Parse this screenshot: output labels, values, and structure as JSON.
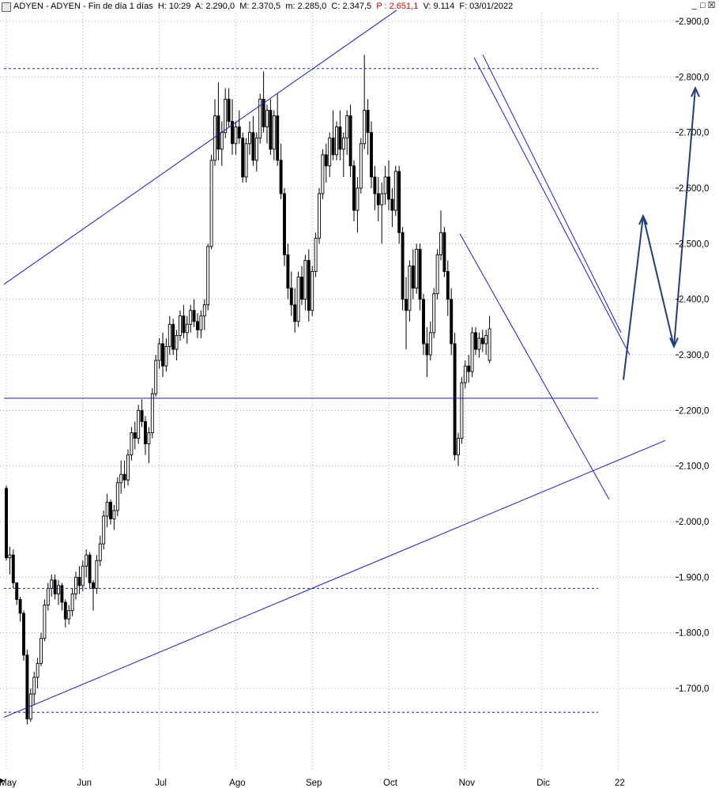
{
  "header": {
    "symbol": "ADYEN - ADYEN - Fin de día 1 días",
    "H": "H: 10:29",
    "A": "A: 2.290,0",
    "M": "M: 2.370,5",
    "m": "m: 2.285,0",
    "C": "C: 2.347,5",
    "P": "P : 2.651,1",
    "V": "V: 9.114",
    "F": "F: 03/01/2022"
  },
  "window_controls": {
    "minimize": "_",
    "maximize": "□",
    "close": "☒"
  },
  "colors": {
    "trendline": "#1a1acd",
    "arrow": "#1f3f7a",
    "candle": "#000000",
    "grid": "#9a9a9a"
  },
  "chart_data": {
    "type": "candlestick",
    "ylim": [
      1600,
      2930
    ],
    "yticks": [
      "2.900,0",
      "2.800,0",
      "2.700,0",
      "2.600,0",
      "2.500,0",
      "2.400,0",
      "2.300,0",
      "2.200,0",
      "2.100,0",
      "2.000,0",
      "1.900,0",
      "1.800,0",
      "1.700,0"
    ],
    "ytick_values": [
      2900,
      2800,
      2700,
      2600,
      2500,
      2400,
      2300,
      2200,
      2100,
      2000,
      1900,
      1800,
      1700
    ],
    "xticks": [
      "May",
      "Jun",
      "Jul",
      "Ago",
      "Sep",
      "Oct",
      "Nov",
      "Dic",
      "22"
    ],
    "xtick_index": [
      0,
      22,
      44,
      66,
      88,
      110,
      132,
      154,
      176
    ],
    "bars": [
      [
        2060,
        2065,
        1930,
        1935
      ],
      [
        1935,
        1955,
        1905,
        1940
      ],
      [
        1940,
        1950,
        1880,
        1890
      ],
      [
        1890,
        1890,
        1850,
        1860
      ],
      [
        1860,
        1865,
        1820,
        1835
      ],
      [
        1835,
        1840,
        1750,
        1760
      ],
      [
        1760,
        1770,
        1635,
        1645
      ],
      [
        1645,
        1700,
        1640,
        1690
      ],
      [
        1690,
        1730,
        1670,
        1720
      ],
      [
        1720,
        1755,
        1700,
        1745
      ],
      [
        1745,
        1800,
        1740,
        1790
      ],
      [
        1790,
        1860,
        1785,
        1850
      ],
      [
        1850,
        1890,
        1840,
        1880
      ],
      [
        1880,
        1905,
        1865,
        1895
      ],
      [
        1895,
        1905,
        1860,
        1870
      ],
      [
        1870,
        1895,
        1850,
        1885
      ],
      [
        1885,
        1890,
        1840,
        1855
      ],
      [
        1855,
        1860,
        1810,
        1825
      ],
      [
        1825,
        1850,
        1815,
        1840
      ],
      [
        1840,
        1880,
        1830,
        1870
      ],
      [
        1870,
        1910,
        1860,
        1900
      ],
      [
        1900,
        1920,
        1870,
        1885
      ],
      [
        1885,
        1930,
        1875,
        1920
      ],
      [
        1920,
        1950,
        1900,
        1940
      ],
      [
        1940,
        1945,
        1880,
        1890
      ],
      [
        1890,
        1895,
        1840,
        1880
      ],
      [
        1880,
        1940,
        1870,
        1930
      ],
      [
        1930,
        1975,
        1920,
        1960
      ],
      [
        1960,
        2020,
        1950,
        2010
      ],
      [
        2010,
        2050,
        1990,
        2035
      ],
      [
        2035,
        2040,
        1995,
        2005
      ],
      [
        2005,
        2030,
        1985,
        2020
      ],
      [
        2020,
        2080,
        2010,
        2070
      ],
      [
        2070,
        2110,
        2050,
        2085
      ],
      [
        2085,
        2110,
        2060,
        2075
      ],
      [
        2075,
        2130,
        2065,
        2120
      ],
      [
        2120,
        2170,
        2110,
        2160
      ],
      [
        2160,
        2180,
        2130,
        2150
      ],
      [
        2150,
        2210,
        2140,
        2200
      ],
      [
        2200,
        2220,
        2170,
        2180
      ],
      [
        2180,
        2190,
        2120,
        2140
      ],
      [
        2140,
        2170,
        2105,
        2160
      ],
      [
        2160,
        2240,
        2150,
        2230
      ],
      [
        2230,
        2300,
        2225,
        2290
      ],
      [
        2290,
        2330,
        2275,
        2320
      ],
      [
        2320,
        2340,
        2260,
        2280
      ],
      [
        2280,
        2330,
        2270,
        2315
      ],
      [
        2315,
        2370,
        2300,
        2355
      ],
      [
        2355,
        2365,
        2300,
        2310
      ],
      [
        2310,
        2345,
        2290,
        2335
      ],
      [
        2335,
        2380,
        2325,
        2370
      ],
      [
        2370,
        2390,
        2330,
        2340
      ],
      [
        2340,
        2370,
        2320,
        2355
      ],
      [
        2355,
        2390,
        2340,
        2380
      ],
      [
        2380,
        2400,
        2350,
        2360
      ],
      [
        2360,
        2375,
        2330,
        2345
      ],
      [
        2345,
        2380,
        2330,
        2370
      ],
      [
        2370,
        2400,
        2345,
        2390
      ],
      [
        2390,
        2500,
        2380,
        2495
      ],
      [
        2495,
        2660,
        2490,
        2650
      ],
      [
        2650,
        2760,
        2640,
        2730
      ],
      [
        2730,
        2790,
        2650,
        2670
      ],
      [
        2670,
        2720,
        2640,
        2700
      ],
      [
        2700,
        2780,
        2690,
        2760
      ],
      [
        2760,
        2780,
        2710,
        2720
      ],
      [
        2720,
        2760,
        2660,
        2680
      ],
      [
        2680,
        2720,
        2660,
        2710
      ],
      [
        2710,
        2740,
        2680,
        2690
      ],
      [
        2690,
        2700,
        2610,
        2620
      ],
      [
        2620,
        2690,
        2610,
        2680
      ],
      [
        2680,
        2720,
        2660,
        2700
      ],
      [
        2700,
        2730,
        2640,
        2650
      ],
      [
        2650,
        2700,
        2630,
        2690
      ],
      [
        2690,
        2770,
        2680,
        2760
      ],
      [
        2760,
        2810,
        2700,
        2710
      ],
      [
        2710,
        2750,
        2680,
        2740
      ],
      [
        2740,
        2760,
        2660,
        2670
      ],
      [
        2670,
        2740,
        2650,
        2730
      ],
      [
        2730,
        2770,
        2640,
        2650
      ],
      [
        2650,
        2680,
        2580,
        2590
      ],
      [
        2590,
        2600,
        2460,
        2480
      ],
      [
        2480,
        2500,
        2400,
        2420
      ],
      [
        2420,
        2450,
        2370,
        2390
      ],
      [
        2390,
        2420,
        2340,
        2360
      ],
      [
        2360,
        2450,
        2350,
        2440
      ],
      [
        2440,
        2460,
        2390,
        2400
      ],
      [
        2400,
        2480,
        2380,
        2470
      ],
      [
        2470,
        2490,
        2360,
        2380
      ],
      [
        2380,
        2460,
        2370,
        2450
      ],
      [
        2450,
        2520,
        2440,
        2510
      ],
      [
        2510,
        2600,
        2500,
        2590
      ],
      [
        2590,
        2670,
        2580,
        2660
      ],
      [
        2660,
        2680,
        2610,
        2640
      ],
      [
        2640,
        2700,
        2620,
        2690
      ],
      [
        2690,
        2740,
        2650,
        2660
      ],
      [
        2660,
        2720,
        2650,
        2710
      ],
      [
        2710,
        2740,
        2650,
        2670
      ],
      [
        2670,
        2700,
        2620,
        2690
      ],
      [
        2690,
        2740,
        2660,
        2730
      ],
      [
        2730,
        2750,
        2620,
        2640
      ],
      [
        2640,
        2650,
        2540,
        2560
      ],
      [
        2560,
        2620,
        2520,
        2600
      ],
      [
        2600,
        2690,
        2590,
        2680
      ],
      [
        2680,
        2840,
        2670,
        2740
      ],
      [
        2740,
        2760,
        2660,
        2700
      ],
      [
        2700,
        2720,
        2600,
        2620
      ],
      [
        2620,
        2640,
        2560,
        2590
      ],
      [
        2590,
        2620,
        2540,
        2570
      ],
      [
        2570,
        2610,
        2500,
        2590
      ],
      [
        2590,
        2640,
        2570,
        2620
      ],
      [
        2620,
        2650,
        2560,
        2580
      ],
      [
        2580,
        2600,
        2530,
        2560
      ],
      [
        2560,
        2640,
        2550,
        2630
      ],
      [
        2630,
        2640,
        2500,
        2520
      ],
      [
        2520,
        2530,
        2380,
        2400
      ],
      [
        2400,
        2440,
        2310,
        2380
      ],
      [
        2380,
        2470,
        2360,
        2460
      ],
      [
        2460,
        2490,
        2400,
        2420
      ],
      [
        2420,
        2500,
        2410,
        2490
      ],
      [
        2490,
        2500,
        2380,
        2400
      ],
      [
        2400,
        2410,
        2300,
        2320
      ],
      [
        2320,
        2350,
        2260,
        2300
      ],
      [
        2300,
        2360,
        2290,
        2340
      ],
      [
        2340,
        2420,
        2330,
        2410
      ],
      [
        2410,
        2490,
        2400,
        2480
      ],
      [
        2480,
        2560,
        2470,
        2520
      ],
      [
        2520,
        2530,
        2440,
        2450
      ],
      [
        2450,
        2470,
        2370,
        2400
      ],
      [
        2400,
        2420,
        2300,
        2320
      ],
      [
        2320,
        2340,
        2110,
        2120
      ],
      [
        2120,
        2160,
        2100,
        2150
      ],
      [
        2150,
        2260,
        2140,
        2250
      ],
      [
        2250,
        2290,
        2240,
        2280
      ],
      [
        2280,
        2300,
        2250,
        2270
      ],
      [
        2270,
        2350,
        2260,
        2340
      ],
      [
        2340,
        2350,
        2300,
        2310
      ],
      [
        2310,
        2340,
        2295,
        2330
      ],
      [
        2330,
        2345,
        2305,
        2320
      ],
      [
        2320,
        2345,
        2300,
        2335
      ],
      [
        2290,
        2370,
        2285,
        2347
      ]
    ],
    "xlabel": "",
    "ylabel": "",
    "grid": true
  }
}
